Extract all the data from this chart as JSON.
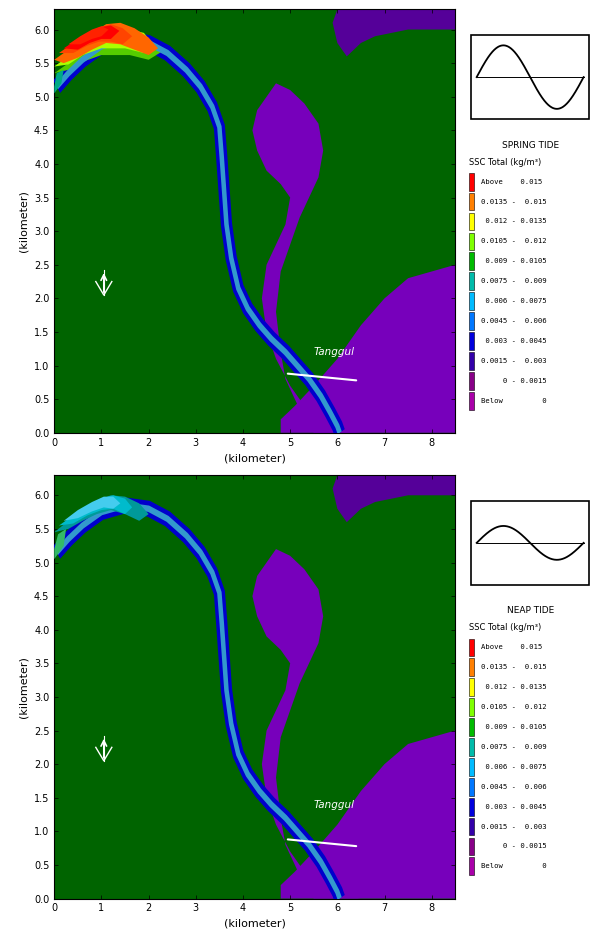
{
  "title_top": "SPRING TIDE",
  "title_bottom": "NEAP TIDE",
  "xlabel": "(kilometer)",
  "ylabel": "(kilometer)",
  "xlim": [
    0.0,
    8.5
  ],
  "ylim": [
    0.0,
    6.3
  ],
  "xticks": [
    0.0,
    1.0,
    2.0,
    3.0,
    4.0,
    5.0,
    6.0,
    7.0,
    8.0
  ],
  "yticks": [
    0.0,
    0.5,
    1.0,
    1.5,
    2.0,
    2.5,
    3.0,
    3.5,
    4.0,
    4.5,
    5.0,
    5.5,
    6.0
  ],
  "legend_colors": [
    "#ff0000",
    "#ff7f00",
    "#ffff00",
    "#7fff00",
    "#00bb00",
    "#00bbaa",
    "#00bbff",
    "#0077ff",
    "#0000dd",
    "#3300aa",
    "#880088",
    "#aa00aa"
  ],
  "legend_labels": [
    "Above    0.015",
    "0.0135 -  0.015",
    " 0.012 - 0.0135",
    "0.0105 -  0.012",
    " 0.009 - 0.0105",
    "0.0075 -  0.009",
    " 0.006 - 0.0075",
    "0.0045 -  0.006",
    " 0.003 - 0.0045",
    "0.0015 -  0.003",
    "     0 - 0.0015",
    "Below         0"
  ],
  "legend_title": "SSC Total (kg/m³)",
  "tanggul_x1": 5.5,
  "tanggul_y1": 1.15,
  "tanggul_x2": 5.5,
  "tanggul_y2": 1.35,
  "bg_land_color": "#006400",
  "sea_purple": "#7700bb",
  "sea_purple2": "#550099",
  "river_blue": "#0000cc",
  "river_cyan": "#009999"
}
